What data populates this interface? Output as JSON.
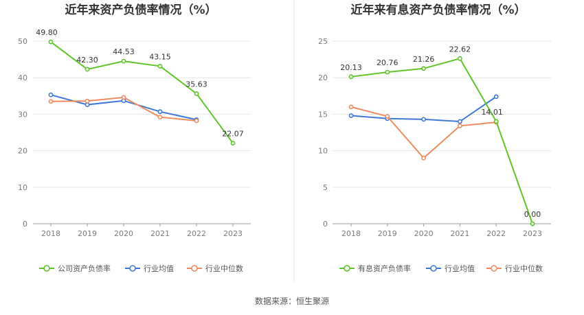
{
  "colors": {
    "company": "#5ec527",
    "industry_avg": "#3c78d8",
    "industry_median": "#f08a5d",
    "grid": "#e6e6e6",
    "divider": "#e8e8e8"
  },
  "chart_data": [
    {
      "id": "left",
      "type": "line",
      "title": "近年来资产负债率情况（%）",
      "categories": [
        "2018",
        "2019",
        "2020",
        "2021",
        "2022",
        "2023"
      ],
      "ylim": [
        0,
        50
      ],
      "yticks": [
        "0",
        "10",
        "20",
        "30",
        "40",
        "50"
      ],
      "grid": true,
      "legend_position": "bottom",
      "series": [
        {
          "key": "company",
          "name": "公司资产负债率",
          "values": [
            49.8,
            42.3,
            44.53,
            43.15,
            35.63,
            22.07
          ],
          "labels": [
            "49.80",
            "42.30",
            "44.53",
            "43.15",
            "35.63",
            "22.07"
          ]
        },
        {
          "key": "industry_avg",
          "name": "行业均值",
          "values": [
            35.3,
            32.6,
            33.7,
            30.7,
            28.5,
            null
          ]
        },
        {
          "key": "industry_median",
          "name": "行业中位数",
          "values": [
            33.5,
            33.6,
            34.6,
            29.2,
            28.2,
            null
          ]
        }
      ]
    },
    {
      "id": "right",
      "type": "line",
      "title": "近年来有息资产负债率情况（%）",
      "categories": [
        "2018",
        "2019",
        "2020",
        "2021",
        "2022",
        "2023"
      ],
      "ylim": [
        0,
        25
      ],
      "yticks": [
        "0",
        "5",
        "10",
        "15",
        "20",
        "25"
      ],
      "grid": true,
      "legend_position": "bottom",
      "series": [
        {
          "key": "company",
          "name": "有息资产负债率",
          "values": [
            20.13,
            20.76,
            21.26,
            22.62,
            14.01,
            0.0
          ],
          "labels": [
            "20.13",
            "20.76",
            "21.26",
            "22.62",
            "14.01",
            "0.00"
          ]
        },
        {
          "key": "industry_avg",
          "name": "行业均值",
          "values": [
            14.8,
            14.4,
            14.3,
            14.0,
            17.4,
            null
          ]
        },
        {
          "key": "industry_median",
          "name": "行业中位数",
          "values": [
            16.0,
            14.7,
            9.0,
            13.4,
            13.9,
            null
          ]
        }
      ]
    }
  ],
  "footer": {
    "source": "数据来源：恒生聚源"
  }
}
